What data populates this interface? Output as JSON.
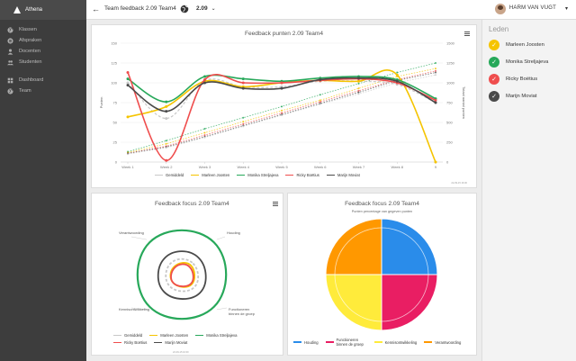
{
  "app": {
    "name": "Athena"
  },
  "header": {
    "crumb": "Team feedback 2.09 Team4",
    "version": "2.09",
    "user": "HARM VAN VUGT"
  },
  "sidebar": {
    "items": [
      {
        "label": "Klassen",
        "icon": "globe-icon"
      },
      {
        "label": "Afspraken",
        "icon": "list-icon"
      },
      {
        "label": "Docenten",
        "icon": "user-icon"
      },
      {
        "label": "Studenten",
        "icon": "group-icon"
      },
      {
        "label": "Dashboard",
        "icon": "dashboard-icon"
      },
      {
        "label": "Team",
        "icon": "globe-icon"
      }
    ]
  },
  "members": {
    "title": "Leden",
    "items": [
      {
        "name": "Marleen Joosten",
        "color": "#f5c400"
      },
      {
        "name": "Monika Streljajeva",
        "color": "#27a85a"
      },
      {
        "name": "Ricky Boëtius",
        "color": "#ef4d4d"
      },
      {
        "name": "Marijn Moviat",
        "color": "#4a4a4a"
      }
    ]
  },
  "charts": {
    "credit": "22-09-15 16:00"
  },
  "chart_data": [
    {
      "type": "line",
      "title": "Feedback punten 2.09 Team4",
      "ylabel": "Punten",
      "y2label": "Totaal aantal punten",
      "ylim": [
        0,
        150
      ],
      "y2lim": [
        0,
        1500
      ],
      "yticks": [
        0,
        25,
        50,
        75,
        100,
        125,
        150
      ],
      "y2ticks": [
        0,
        250,
        500,
        750,
        1000,
        1250,
        1500
      ],
      "categories": [
        "Week 1",
        "Week 2",
        "Week 3",
        "Week 4",
        "Week 5",
        "Week 6",
        "Week 7",
        "Week 8",
        "9"
      ],
      "series": [
        {
          "name": "Gemiddeld",
          "color": "#c8c8c8",
          "values": [
            100,
            55,
            103,
            95,
            95,
            102,
            102,
            98,
            75
          ]
        },
        {
          "name": "Marleen Joosten",
          "color": "#f5c400",
          "values": [
            57,
            70,
            102,
            95,
            100,
            103,
            102,
            110,
            0
          ]
        },
        {
          "name": "Monika Streljajeva",
          "color": "#27a85a",
          "values": [
            105,
            76,
            108,
            105,
            102,
            106,
            108,
            104,
            80
          ]
        },
        {
          "name": "Ricky Boëtius",
          "color": "#ef4d4d",
          "values": [
            113,
            2,
            104,
            100,
            100,
            103,
            105,
            100,
            78
          ]
        },
        {
          "name": "Marijn Moviat",
          "color": "#4a4a4a",
          "values": [
            97,
            64,
            100,
            93,
            93,
            104,
            106,
            102,
            75
          ]
        }
      ],
      "cumulative": [
        {
          "color": "#27a85a",
          "values": [
            130,
            270,
            420,
            560,
            700,
            850,
            990,
            1130,
            1250
          ]
        },
        {
          "color": "#f5c400",
          "values": [
            120,
            230,
            370,
            510,
            650,
            780,
            930,
            1080,
            1180
          ]
        },
        {
          "color": "#ef4d4d",
          "values": [
            110,
            200,
            340,
            480,
            620,
            760,
            900,
            1040,
            1150
          ]
        },
        {
          "color": "#4a4a4a",
          "values": [
            110,
            190,
            320,
            460,
            600,
            740,
            880,
            1030,
            1130
          ]
        },
        {
          "color": "#c8c8c8",
          "values": [
            100,
            180,
            310,
            450,
            590,
            730,
            860,
            1000,
            1100
          ]
        }
      ]
    },
    {
      "type": "radar",
      "title": "Feedback focus 2.09 Team4",
      "axes": [
        "Houding",
        "Functioneren binnen de groep",
        "Kennisontwikkeling",
        "Verantwoording"
      ],
      "series": [
        {
          "name": "Gemiddeld",
          "color": "#c8c8c8",
          "values": [
            16,
            18,
            17,
            16
          ]
        },
        {
          "name": "Marleen Joosten",
          "color": "#f5c400",
          "values": [
            13,
            14,
            12,
            11
          ]
        },
        {
          "name": "Monika Streljajeva",
          "color": "#27a85a",
          "values": [
            46,
            46,
            46,
            46
          ]
        },
        {
          "name": "Ricky Boëtius",
          "color": "#ef4d4d",
          "values": [
            11,
            13,
            12,
            10
          ]
        },
        {
          "name": "Marijn Moviat",
          "color": "#4a4a4a",
          "values": [
            24,
            26,
            25,
            24
          ]
        }
      ]
    },
    {
      "type": "pie",
      "title": "Feedback focus 2.09 Team4",
      "subtitle": "Punten percentage van gegeven punten",
      "slices": [
        {
          "label": "Houding",
          "color": "#2a8cea",
          "value": 25
        },
        {
          "label": "Functioneren binnen de groep",
          "color": "#e91e63",
          "value": 25
        },
        {
          "label": "Kennisontwikkeling",
          "color": "#ffeb3b",
          "value": 25
        },
        {
          "label": "Verantwoording",
          "color": "#ff9800",
          "value": 25
        }
      ]
    }
  ]
}
